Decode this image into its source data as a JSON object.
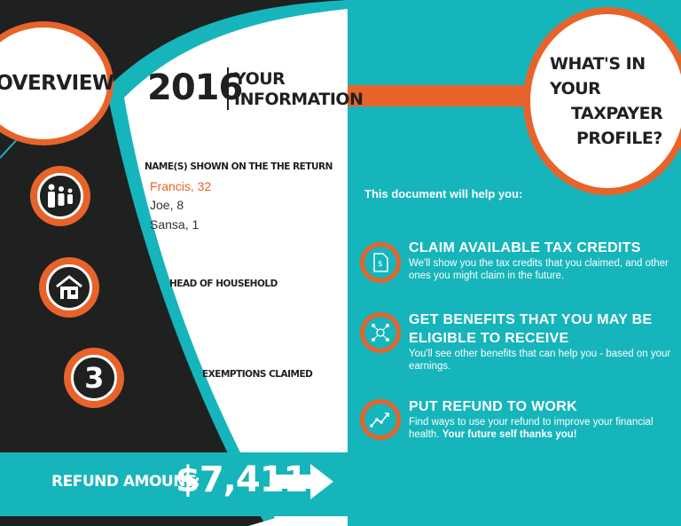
{
  "overview": {
    "title": "OVERVIEW"
  },
  "info": {
    "year": "2016",
    "heading_line1": "YOUR",
    "heading_line2": "INFORMATION",
    "names_label": "NAME(S) SHOWN ON THE THE RETURN",
    "names": [
      "Francis, 32",
      "Joe, 8",
      "Sansa, 1"
    ],
    "filing_status": "HEAD OF HOUSEHOLD",
    "exemptions_count": "3",
    "exemptions_label": "EXEMPTIONS CLAIMED"
  },
  "refund": {
    "label": "REFUND AMOUNT:",
    "amount": "$7,411"
  },
  "profile": {
    "title_line1": "WHAT'S IN YOUR",
    "title_line2": "TAXPAYER",
    "title_line3": "PROFILE?",
    "intro": "This document will help you:",
    "features": [
      {
        "title": "CLAIM AVAILABLE TAX CREDITS",
        "body": "We'll show you the tax credits that you claimed, and other ones you might claim in the future."
      },
      {
        "title_line1": "GET BENEFITS THAT YOU MAY BE",
        "title_line2": "ELIGIBLE TO RECEIVE",
        "body": "You'll see other benefits that can help you - based on your earnings."
      },
      {
        "title": "PUT REFUND TO WORK",
        "body": "Find ways to use your refund to improve your financial health.",
        "body_bold": "Your future self thanks you!"
      }
    ]
  },
  "colors": {
    "teal": "#16b5bb",
    "orange": "#e8632a",
    "dark": "#1f2020"
  }
}
